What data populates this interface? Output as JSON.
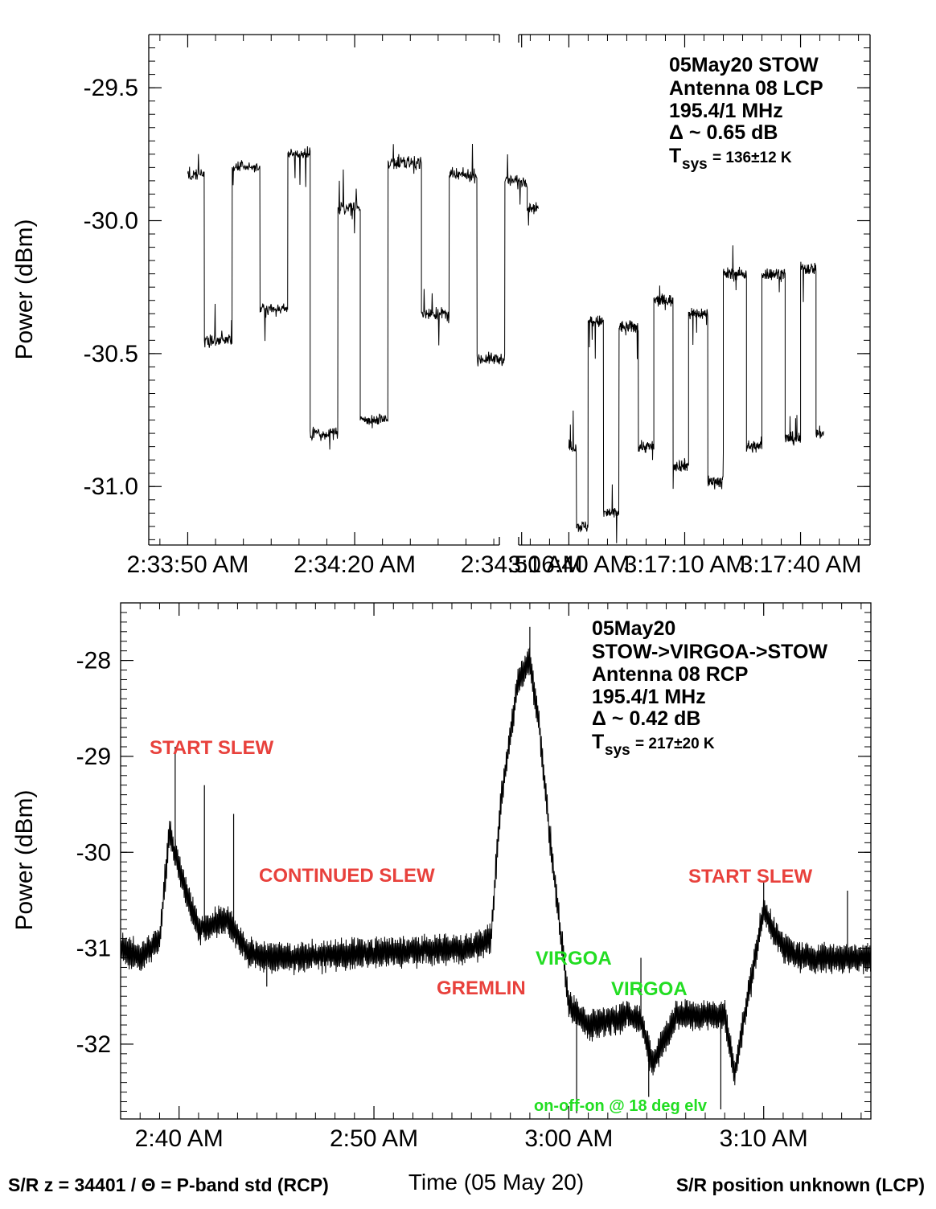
{
  "chart_data": [
    {
      "type": "line",
      "panel": "top",
      "ylabel": "Power (dBm)",
      "ylim": [
        -31.22,
        -29.3
      ],
      "yticks": [
        -29.5,
        -30.0,
        -30.5,
        -31.0
      ],
      "ytick_labels": [
        "-29.5",
        "-30.0",
        "-30.5",
        "-31.0"
      ],
      "broken_x_axis": true,
      "segments": [
        {
          "xlim_seconds": [
            -7,
            56
          ],
          "xticks": [
            0,
            30,
            60
          ],
          "xtick_labels": [
            "2:33:50 AM",
            "2:34:20 AM",
            "2:34:50 AM"
          ],
          "levels": [
            {
              "x": [
                0,
                3
              ],
              "y": -29.83
            },
            {
              "x": [
                3,
                8
              ],
              "y": -30.45
            },
            {
              "x": [
                8,
                13
              ],
              "y": -29.8
            },
            {
              "x": [
                13,
                18
              ],
              "y": -30.33
            },
            {
              "x": [
                18,
                22
              ],
              "y": -29.75
            },
            {
              "x": [
                22,
                27
              ],
              "y": -30.8
            },
            {
              "x": [
                27,
                31
              ],
              "y": -29.95
            },
            {
              "x": [
                31,
                36
              ],
              "y": -30.75
            },
            {
              "x": [
                36,
                42
              ],
              "y": -29.78
            },
            {
              "x": [
                42,
                47
              ],
              "y": -30.35
            },
            {
              "x": [
                47,
                52
              ],
              "y": -29.83
            },
            {
              "x": [
                52,
                57
              ],
              "y": -30.52
            },
            {
              "x": [
                57,
                61
              ],
              "y": -29.85
            },
            {
              "x": [
                61,
                63
              ],
              "y": -29.95
            }
          ]
        },
        {
          "xlim_seconds": [
            -13,
            78
          ],
          "xticks": [
            0,
            30,
            60
          ],
          "xtick_labels": [
            "3:16:40 AM",
            "3:17:10 AM",
            "3:17:40 AM"
          ],
          "levels": [
            {
              "x": [
                0,
                2
              ],
              "y": -30.85
            },
            {
              "x": [
                2,
                5
              ],
              "y": -31.15
            },
            {
              "x": [
                5,
                9
              ],
              "y": -30.38
            },
            {
              "x": [
                9,
                13
              ],
              "y": -31.1
            },
            {
              "x": [
                13,
                18
              ],
              "y": -30.4
            },
            {
              "x": [
                18,
                22
              ],
              "y": -30.85
            },
            {
              "x": [
                22,
                27
              ],
              "y": -30.3
            },
            {
              "x": [
                27,
                31
              ],
              "y": -30.92
            },
            {
              "x": [
                31,
                36
              ],
              "y": -30.35
            },
            {
              "x": [
                36,
                40
              ],
              "y": -30.98
            },
            {
              "x": [
                40,
                46
              ],
              "y": -30.2
            },
            {
              "x": [
                46,
                50
              ],
              "y": -30.85
            },
            {
              "x": [
                50,
                56
              ],
              "y": -30.2
            },
            {
              "x": [
                56,
                60
              ],
              "y": -30.82
            },
            {
              "x": [
                60,
                64
              ],
              "y": -30.18
            },
            {
              "x": [
                64,
                66
              ],
              "y": -30.8
            }
          ]
        }
      ],
      "info": {
        "line1": "05May20 STOW",
        "line2": "Antenna 08 LCP",
        "line3": "195.4/1 MHz",
        "line4": "Δ ~ 0.65 dB",
        "tsys_T": "T",
        "tsys_sub": "sys",
        "tsys_val": "= 136±12 K"
      }
    },
    {
      "type": "line",
      "panel": "bottom",
      "ylabel": "Power (dBm)",
      "xlabel": "Time (05 May 20)",
      "xlim_minutes": [
        37,
        75.5
      ],
      "ylim": [
        -32.78,
        -27.4
      ],
      "yticks": [
        -28,
        -29,
        -30,
        -31,
        -32
      ],
      "ytick_labels": [
        "-28",
        "-29",
        "-30",
        "-31",
        "-32"
      ],
      "xticks": [
        40,
        50,
        60,
        70
      ],
      "xtick_labels": [
        "2:40 AM",
        "2:50 AM",
        "3:00 AM",
        "3:10 AM"
      ],
      "series": [
        {
          "points": [
            [
              37,
              -31.0
            ],
            [
              38,
              -31.1
            ],
            [
              39,
              -30.9
            ],
            [
              39.5,
              -29.8
            ],
            [
              40.5,
              -30.5
            ],
            [
              41,
              -30.8
            ],
            [
              42.5,
              -30.7
            ],
            [
              43.5,
              -31.05
            ],
            [
              45,
              -31.1
            ],
            [
              50,
              -31.05
            ],
            [
              55,
              -31.0
            ],
            [
              56,
              -30.9
            ],
            [
              56.5,
              -29.5
            ],
            [
              57.4,
              -28.2
            ],
            [
              58,
              -28.0
            ],
            [
              58.5,
              -28.7
            ],
            [
              59,
              -29.8
            ],
            [
              60,
              -31.6
            ],
            [
              61,
              -31.8
            ],
            [
              63,
              -31.7
            ],
            [
              63.7,
              -31.75
            ],
            [
              64.3,
              -32.2
            ],
            [
              65.5,
              -31.7
            ],
            [
              68,
              -31.7
            ],
            [
              68.5,
              -32.3
            ],
            [
              69.2,
              -31.5
            ],
            [
              70,
              -30.6
            ],
            [
              71,
              -31.0
            ],
            [
              72,
              -31.1
            ],
            [
              75.5,
              -31.1
            ]
          ],
          "spikes": [
            {
              "x": 39.8,
              "y": -28.9
            },
            {
              "x": 41.3,
              "y": -29.3
            },
            {
              "x": 42.8,
              "y": -29.6
            },
            {
              "x": 44.5,
              "y": -31.4
            },
            {
              "x": 58.0,
              "y": -27.65
            },
            {
              "x": 60.4,
              "y": -32.72
            },
            {
              "x": 63.7,
              "y": -31.1
            },
            {
              "x": 64.1,
              "y": -32.55
            },
            {
              "x": 67.8,
              "y": -32.68
            },
            {
              "x": 70.0,
              "y": -30.3
            },
            {
              "x": 74.3,
              "y": -30.4
            }
          ]
        }
      ],
      "info": {
        "line1": "05May20",
        "line2": "STOW->VIRGOA->STOW",
        "line3": "Antenna 08 RCP",
        "line4": "195.4/1 MHz",
        "line5": "Δ ~ 0.42 dB",
        "tsys_T": "T",
        "tsys_sub": "sys",
        "tsys_val": "= 217±20 K"
      },
      "annotations": {
        "start_slew_1": "START SLEW",
        "continued_slew": "CONTINUED SLEW",
        "gremlin": "GREMLIN",
        "virgoa_1": "VIRGOA",
        "virgoa_2": "VIRGOA",
        "start_slew_2": "START SLEW",
        "on_off_on": "on-off-on @ 18 deg elv"
      },
      "annotation_colors": {
        "red": "#e8413c",
        "green": "#22dd22"
      }
    }
  ],
  "footer": {
    "left": "S/R z = 34401 / Θ = P-band std (RCP)",
    "right": "S/R position unknown (LCP)"
  }
}
